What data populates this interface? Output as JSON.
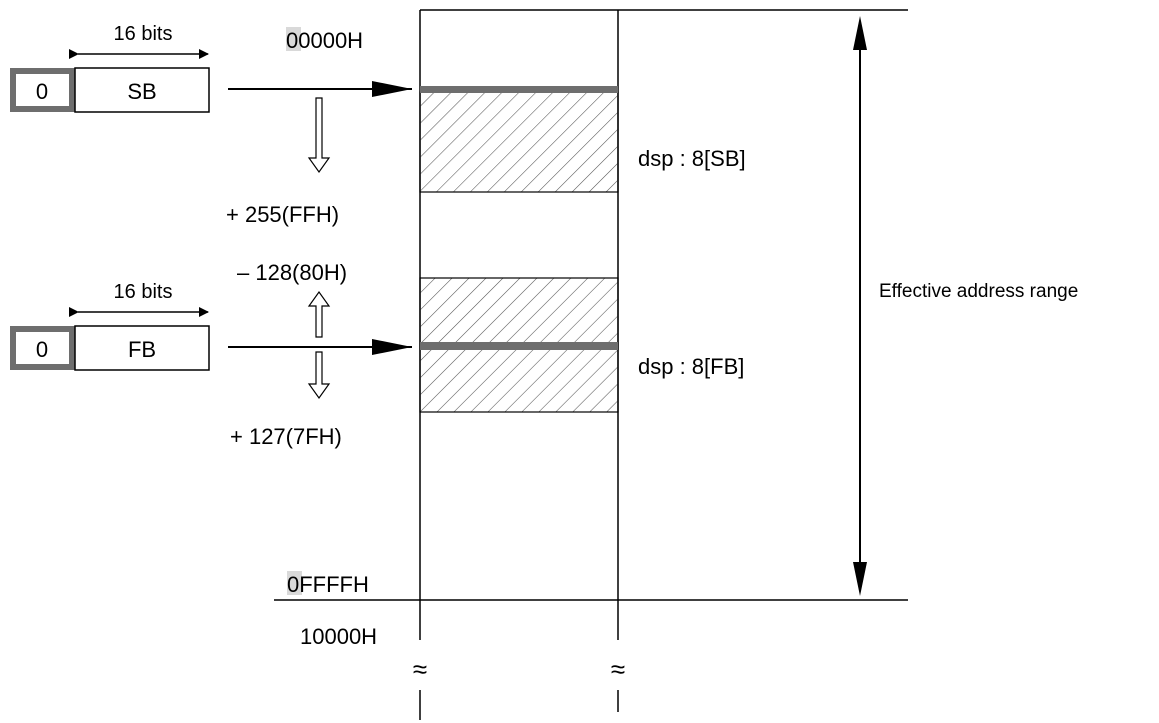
{
  "registers": {
    "sb": {
      "prefix": "0",
      "name": "SB",
      "width_label": "16 bits"
    },
    "fb": {
      "prefix": "0",
      "name": "FB",
      "width_label": "16 bits"
    }
  },
  "addresses": {
    "start": "00000H",
    "end": "0FFFFH",
    "beyond": "10000H"
  },
  "offsets": {
    "sb_plus": "+ 255(FFH)",
    "fb_minus": "– 128(80H)",
    "fb_plus": "+ 127(7FH)"
  },
  "modes": {
    "sb": "dsp : 8[SB]",
    "fb": "dsp : 8[FB]"
  },
  "range_label": "Effective address range",
  "break_symbol": "≈",
  "colors": {
    "line": "#000000",
    "box_border_gray": "#6e6e6e",
    "highlight": "#d9d9d9",
    "base_bar": "#6e6e6e",
    "hatch": "#555555"
  }
}
